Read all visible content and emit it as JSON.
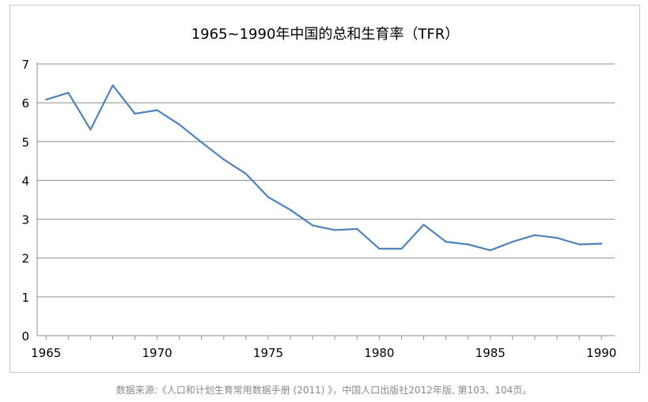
{
  "chart_data": {
    "type": "line",
    "title": "1965~1990年中国的总和生育率（TFR）",
    "xlabel": "",
    "ylabel": "",
    "xlim": [
      1964.6,
      1990.6
    ],
    "ylim": [
      0,
      7
    ],
    "x_ticks": [
      1965,
      1970,
      1975,
      1980,
      1985,
      1990
    ],
    "y_ticks": [
      0,
      1,
      2,
      3,
      4,
      5,
      6,
      7
    ],
    "grid": "horizontal",
    "legend": "none",
    "series": [
      {
        "name": "",
        "color": "#4f81bd",
        "x": [
          1965,
          1966,
          1967,
          1968,
          1969,
          1970,
          1971,
          1972,
          1973,
          1974,
          1975,
          1976,
          1977,
          1978,
          1979,
          1980,
          1981,
          1982,
          1983,
          1984,
          1985,
          1986,
          1987,
          1988,
          1989,
          1990
        ],
        "values": [
          6.08,
          6.26,
          5.31,
          6.45,
          5.72,
          5.81,
          5.44,
          4.98,
          4.54,
          4.17,
          3.57,
          3.24,
          2.84,
          2.72,
          2.75,
          2.24,
          2.24,
          2.86,
          2.42,
          2.35,
          2.2,
          2.42,
          2.59,
          2.52,
          2.35,
          2.37
        ]
      }
    ]
  },
  "source_note": "数据来源:《人口和计划生育常用数据手册 (2011) 》，中国人口出版社2012年版, 第103、104页。"
}
